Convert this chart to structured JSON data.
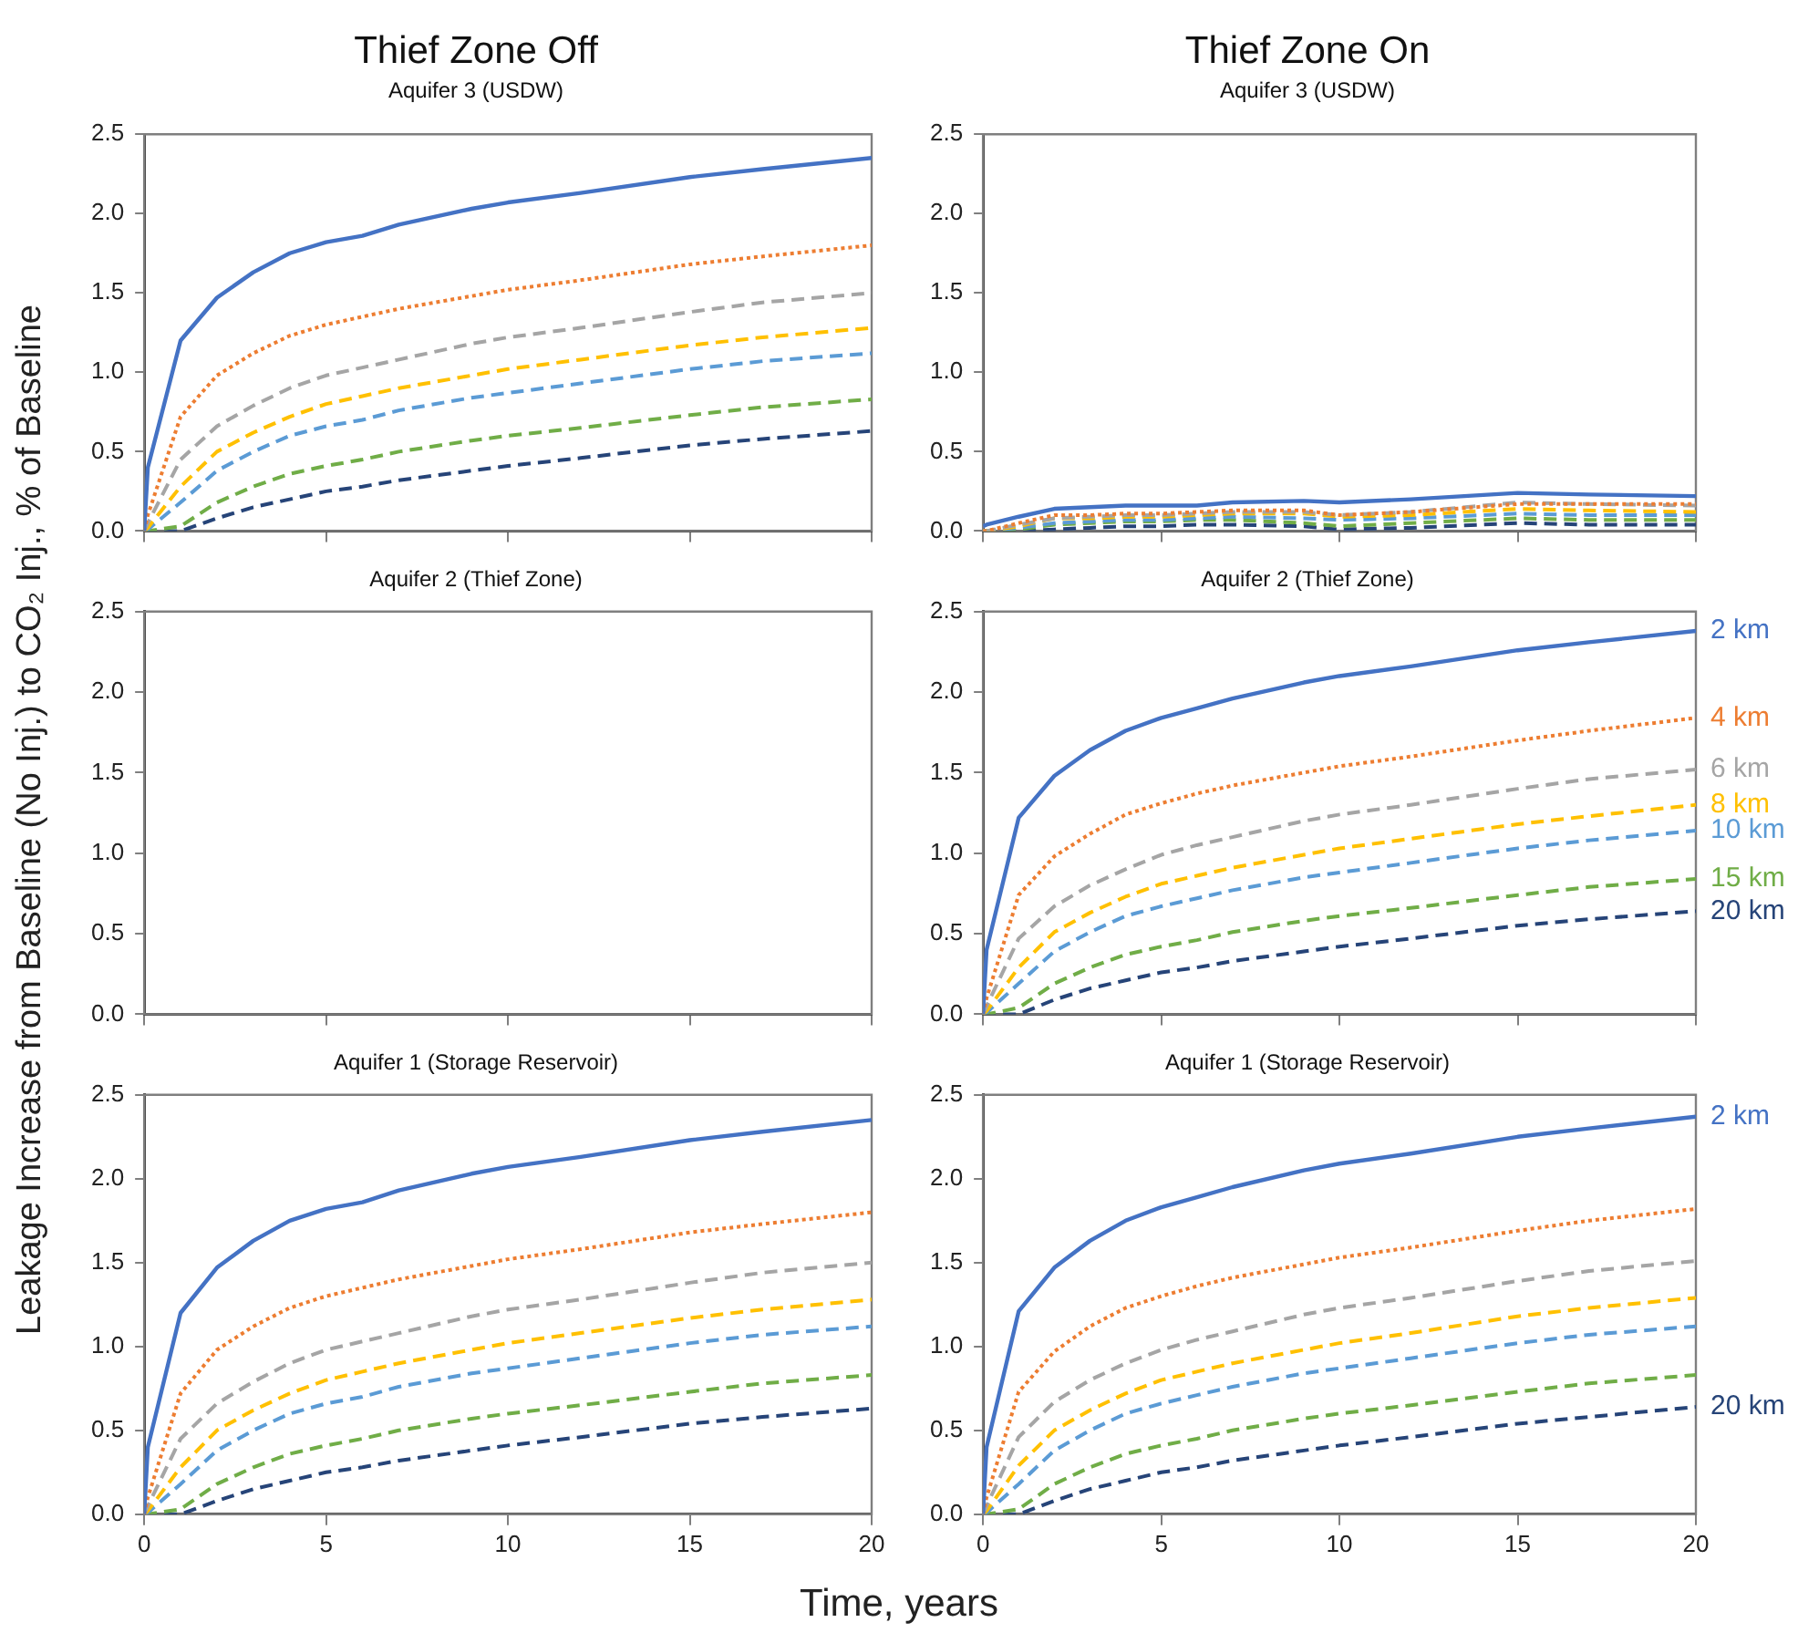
{
  "chart_data": [
    {
      "type": "line",
      "title": "Thief Zone Off",
      "subtitle": "Aquifer 3 (USDW)",
      "x": [
        0,
        0.1,
        1,
        2,
        3,
        4,
        5,
        6,
        7,
        9,
        10,
        12,
        15,
        17,
        20
      ],
      "xlim": [
        0,
        20
      ],
      "xticks": [
        0,
        5,
        10,
        15,
        20
      ],
      "ylim": [
        0,
        2.5
      ],
      "yticks": [
        {
          "value": 0,
          "label": "0.0"
        },
        {
          "value": 0.5,
          "label": "0.5"
        },
        {
          "value": 1,
          "label": "1.0"
        },
        {
          "value": 1.5,
          "label": "1.5"
        },
        {
          "value": 2,
          "label": "2.0"
        },
        {
          "value": 2.5,
          "label": "2.5"
        }
      ],
      "grid": false,
      "tick_labels": "y",
      "series": [
        {
          "color": "#4472c4",
          "line_style": "solid",
          "values": [
            0,
            0.4,
            1.2,
            1.47,
            1.63,
            1.75,
            1.82,
            1.86,
            1.93,
            2.03,
            2.07,
            2.13,
            2.23,
            2.28,
            2.35
          ]
        },
        {
          "color": "#ed7d31",
          "line_style": "dotted",
          "values": [
            0,
            0.1,
            0.72,
            0.98,
            1.12,
            1.23,
            1.3,
            1.35,
            1.4,
            1.48,
            1.52,
            1.58,
            1.68,
            1.73,
            1.8
          ]
        },
        {
          "color": "#a5a5a5",
          "line_style": "dashed",
          "values": [
            0,
            0.05,
            0.45,
            0.66,
            0.79,
            0.9,
            0.98,
            1.03,
            1.08,
            1.18,
            1.22,
            1.28,
            1.38,
            1.44,
            1.5
          ]
        },
        {
          "color": "#ffc000",
          "line_style": "dashed",
          "values": [
            0,
            0.02,
            0.28,
            0.5,
            0.62,
            0.72,
            0.8,
            0.85,
            0.9,
            0.98,
            1.02,
            1.08,
            1.17,
            1.22,
            1.28
          ]
        },
        {
          "color": "#5b9bd5",
          "line_style": "dashed",
          "values": [
            0,
            0.01,
            0.18,
            0.38,
            0.5,
            0.6,
            0.66,
            0.7,
            0.76,
            0.84,
            0.87,
            0.93,
            1.02,
            1.07,
            1.12
          ]
        },
        {
          "color": "#70ad47",
          "line_style": "dashed",
          "values": [
            0,
            0,
            0.03,
            0.18,
            0.28,
            0.36,
            0.41,
            0.45,
            0.5,
            0.57,
            0.6,
            0.65,
            0.73,
            0.78,
            0.83
          ]
        },
        {
          "color": "#264478",
          "line_style": "dashed",
          "values": [
            0,
            0,
            0,
            0.08,
            0.15,
            0.2,
            0.25,
            0.28,
            0.32,
            0.38,
            0.41,
            0.46,
            0.54,
            0.58,
            0.63
          ]
        }
      ]
    },
    {
      "type": "line",
      "title": "Thief Zone On",
      "subtitle": "Aquifer 3 (USDW)",
      "x": [
        0,
        0.1,
        1,
        2,
        3,
        4,
        5,
        6,
        7,
        9,
        10,
        12,
        15,
        17,
        20
      ],
      "xlim": [
        0,
        20
      ],
      "xticks": [
        0,
        5,
        10,
        15,
        20
      ],
      "ylim": [
        0,
        2.5
      ],
      "yticks": [
        {
          "value": 0,
          "label": "0.0"
        },
        {
          "value": 0.5,
          "label": "0.5"
        },
        {
          "value": 1,
          "label": "1.0"
        },
        {
          "value": 1.5,
          "label": "1.5"
        },
        {
          "value": 2,
          "label": "2.0"
        },
        {
          "value": 2.5,
          "label": "2.5"
        }
      ],
      "grid": false,
      "tick_labels": "y",
      "series": [
        {
          "color": "#4472c4",
          "line_style": "solid",
          "values": [
            0.03,
            0.04,
            0.09,
            0.14,
            0.15,
            0.16,
            0.16,
            0.16,
            0.18,
            0.19,
            0.18,
            0.2,
            0.24,
            0.23,
            0.22
          ]
        },
        {
          "color": "#ed7d31",
          "line_style": "dotted",
          "values": [
            0,
            0,
            0.05,
            0.1,
            0.1,
            0.11,
            0.11,
            0.12,
            0.13,
            0.13,
            0.1,
            0.12,
            0.17,
            0.17,
            0.17
          ]
        },
        {
          "color": "#a5a5a5",
          "line_style": "dashed",
          "values": [
            0,
            0,
            0.04,
            0.08,
            0.09,
            0.1,
            0.1,
            0.11,
            0.12,
            0.12,
            0.1,
            0.12,
            0.18,
            0.17,
            0.16
          ]
        },
        {
          "color": "#ffc000",
          "line_style": "dashed",
          "values": [
            0,
            0,
            0.03,
            0.08,
            0.08,
            0.09,
            0.09,
            0.1,
            0.11,
            0.11,
            0.09,
            0.1,
            0.14,
            0.13,
            0.12
          ]
        },
        {
          "color": "#5b9bd5",
          "line_style": "dashed",
          "values": [
            0,
            0,
            0.02,
            0.05,
            0.06,
            0.07,
            0.07,
            0.08,
            0.09,
            0.08,
            0.07,
            0.08,
            0.11,
            0.1,
            0.1
          ]
        },
        {
          "color": "#70ad47",
          "line_style": "dashed",
          "values": [
            0,
            0,
            0.01,
            0.04,
            0.05,
            0.06,
            0.06,
            0.07,
            0.07,
            0.05,
            0.03,
            0.05,
            0.08,
            0.07,
            0.07
          ]
        },
        {
          "color": "#264478",
          "line_style": "dashed",
          "values": [
            0,
            0,
            0,
            0.01,
            0.02,
            0.03,
            0.03,
            0.04,
            0.04,
            0.03,
            0.01,
            0.02,
            0.05,
            0.04,
            0.04
          ]
        }
      ]
    },
    {
      "type": "line",
      "title": "Aquifer 2 (Thief Zone)",
      "ylabel": "Leakage Increase from Baseline (No Inj.) to CO₂ Inj., % of Baseline",
      "xlim": [
        0,
        20
      ],
      "xticks": [
        0,
        5,
        10,
        15,
        20
      ],
      "ylim": [
        0,
        2.5
      ],
      "yticks": [
        {
          "value": 0,
          "label": "0.0"
        },
        {
          "value": 0.5,
          "label": "0.5"
        },
        {
          "value": 1,
          "label": "1.0"
        },
        {
          "value": 1.5,
          "label": "1.5"
        },
        {
          "value": 2,
          "label": "2.0"
        },
        {
          "value": 2.5,
          "label": "2.5"
        }
      ],
      "grid": false,
      "tick_labels": "y"
    },
    {
      "type": "line",
      "title": "Aquifer 2 (Thief Zone)",
      "x": [
        0,
        0.1,
        1,
        2,
        3,
        4,
        5,
        6,
        7,
        9,
        10,
        12,
        15,
        17,
        20
      ],
      "xlim": [
        0,
        20
      ],
      "xticks": [
        0,
        5,
        10,
        15,
        20
      ],
      "ylim": [
        0,
        2.5
      ],
      "yticks": [
        {
          "value": 0,
          "label": "0.0"
        },
        {
          "value": 0.5,
          "label": "0.5"
        },
        {
          "value": 1,
          "label": "1.0"
        },
        {
          "value": 1.5,
          "label": "1.5"
        },
        {
          "value": 2,
          "label": "2.0"
        },
        {
          "value": 2.5,
          "label": "2.5"
        }
      ],
      "grid": false,
      "tick_labels": "y",
      "series": [
        {
          "name": "2 km",
          "color": "#4472c4",
          "line_style": "solid",
          "values": [
            0,
            0.4,
            1.22,
            1.48,
            1.64,
            1.76,
            1.84,
            1.9,
            1.96,
            2.06,
            2.1,
            2.16,
            2.26,
            2.31,
            2.38
          ]
        },
        {
          "name": "4 km",
          "color": "#ed7d31",
          "line_style": "dotted",
          "values": [
            0,
            0.1,
            0.74,
            0.98,
            1.12,
            1.24,
            1.31,
            1.37,
            1.42,
            1.5,
            1.54,
            1.6,
            1.7,
            1.76,
            1.84
          ]
        },
        {
          "name": "6 km",
          "color": "#a5a5a5",
          "line_style": "dashed",
          "values": [
            0,
            0.05,
            0.47,
            0.67,
            0.8,
            0.9,
            0.99,
            1.05,
            1.1,
            1.2,
            1.24,
            1.3,
            1.4,
            1.46,
            1.52
          ]
        },
        {
          "name": "8 km",
          "color": "#ffc000",
          "line_style": "dashed",
          "values": [
            0,
            0.02,
            0.29,
            0.51,
            0.63,
            0.73,
            0.81,
            0.86,
            0.91,
            0.99,
            1.03,
            1.09,
            1.18,
            1.23,
            1.3
          ]
        },
        {
          "name": "10 km",
          "color": "#5b9bd5",
          "line_style": "dashed",
          "values": [
            0,
            0.01,
            0.19,
            0.39,
            0.51,
            0.61,
            0.67,
            0.72,
            0.77,
            0.85,
            0.88,
            0.94,
            1.03,
            1.08,
            1.14
          ]
        },
        {
          "name": "15 km",
          "color": "#70ad47",
          "line_style": "dashed",
          "values": [
            0,
            0,
            0.04,
            0.19,
            0.29,
            0.37,
            0.42,
            0.46,
            0.51,
            0.58,
            0.61,
            0.66,
            0.74,
            0.79,
            0.84
          ]
        },
        {
          "name": "20 km",
          "color": "#264478",
          "line_style": "dashed",
          "values": [
            0,
            0,
            0,
            0.09,
            0.16,
            0.21,
            0.26,
            0.29,
            0.33,
            0.39,
            0.42,
            0.47,
            0.55,
            0.59,
            0.64
          ]
        }
      ]
    },
    {
      "type": "line",
      "title": "Aquifer 1 (Storage Reservoir)",
      "xlabel": "Time, years",
      "x": [
        0,
        0.1,
        1,
        2,
        3,
        4,
        5,
        6,
        7,
        9,
        10,
        12,
        15,
        17,
        20
      ],
      "xlim": [
        0,
        20
      ],
      "xticks": [
        0,
        5,
        10,
        15,
        20
      ],
      "ylim": [
        0,
        2.5
      ],
      "yticks": [
        {
          "value": 0,
          "label": "0.0"
        },
        {
          "value": 0.5,
          "label": "0.5"
        },
        {
          "value": 1,
          "label": "1.0"
        },
        {
          "value": 1.5,
          "label": "1.5"
        },
        {
          "value": 2,
          "label": "2.0"
        },
        {
          "value": 2.5,
          "label": "2.5"
        }
      ],
      "grid": false,
      "series": [
        {
          "color": "#4472c4",
          "line_style": "solid",
          "values": [
            0,
            0.4,
            1.2,
            1.47,
            1.63,
            1.75,
            1.82,
            1.86,
            1.93,
            2.03,
            2.07,
            2.13,
            2.23,
            2.28,
            2.35
          ]
        },
        {
          "color": "#ed7d31",
          "line_style": "dotted",
          "values": [
            0,
            0.1,
            0.72,
            0.98,
            1.12,
            1.23,
            1.3,
            1.35,
            1.4,
            1.48,
            1.52,
            1.58,
            1.68,
            1.73,
            1.8
          ]
        },
        {
          "color": "#a5a5a5",
          "line_style": "dashed",
          "values": [
            0,
            0.05,
            0.45,
            0.66,
            0.79,
            0.9,
            0.98,
            1.03,
            1.08,
            1.18,
            1.22,
            1.28,
            1.38,
            1.44,
            1.5
          ]
        },
        {
          "color": "#ffc000",
          "line_style": "dashed",
          "values": [
            0,
            0.02,
            0.28,
            0.5,
            0.62,
            0.72,
            0.8,
            0.85,
            0.9,
            0.98,
            1.02,
            1.08,
            1.17,
            1.22,
            1.28
          ]
        },
        {
          "color": "#5b9bd5",
          "line_style": "dashed",
          "values": [
            0,
            0.01,
            0.18,
            0.38,
            0.5,
            0.6,
            0.66,
            0.7,
            0.76,
            0.84,
            0.87,
            0.93,
            1.02,
            1.07,
            1.12
          ]
        },
        {
          "color": "#70ad47",
          "line_style": "dashed",
          "values": [
            0,
            0,
            0.03,
            0.18,
            0.28,
            0.36,
            0.41,
            0.45,
            0.5,
            0.57,
            0.6,
            0.65,
            0.73,
            0.78,
            0.83
          ]
        },
        {
          "color": "#264478",
          "line_style": "dashed",
          "values": [
            0,
            0,
            0,
            0.08,
            0.15,
            0.2,
            0.25,
            0.28,
            0.32,
            0.38,
            0.41,
            0.46,
            0.54,
            0.58,
            0.63
          ]
        }
      ]
    },
    {
      "type": "line",
      "title": "Aquifer 1 (Storage Reservoir)",
      "x": [
        0,
        0.1,
        1,
        2,
        3,
        4,
        5,
        6,
        7,
        9,
        10,
        12,
        15,
        17,
        20
      ],
      "xlim": [
        0,
        20
      ],
      "xticks": [
        0,
        5,
        10,
        15,
        20
      ],
      "ylim": [
        0,
        2.5
      ],
      "yticks": [
        {
          "value": 0,
          "label": "0.0"
        },
        {
          "value": 0.5,
          "label": "0.5"
        },
        {
          "value": 1,
          "label": "1.0"
        },
        {
          "value": 1.5,
          "label": "1.5"
        },
        {
          "value": 2,
          "label": "2.0"
        },
        {
          "value": 2.5,
          "label": "2.5"
        }
      ],
      "grid": false,
      "series": [
        {
          "name": "2 km",
          "color": "#4472c4",
          "line_style": "solid",
          "values": [
            0,
            0.4,
            1.21,
            1.47,
            1.63,
            1.75,
            1.83,
            1.89,
            1.95,
            2.05,
            2.09,
            2.15,
            2.25,
            2.3,
            2.37
          ]
        },
        {
          "color": "#ed7d31",
          "line_style": "dotted",
          "values": [
            0,
            0.1,
            0.73,
            0.97,
            1.12,
            1.23,
            1.3,
            1.36,
            1.41,
            1.49,
            1.53,
            1.59,
            1.69,
            1.75,
            1.82
          ]
        },
        {
          "color": "#a5a5a5",
          "line_style": "dashed",
          "values": [
            0,
            0.05,
            0.46,
            0.67,
            0.8,
            0.9,
            0.98,
            1.04,
            1.09,
            1.19,
            1.23,
            1.29,
            1.39,
            1.45,
            1.51
          ]
        },
        {
          "color": "#ffc000",
          "line_style": "dashed",
          "values": [
            0,
            0.02,
            0.29,
            0.5,
            0.62,
            0.72,
            0.8,
            0.85,
            0.9,
            0.98,
            1.02,
            1.08,
            1.18,
            1.23,
            1.29
          ]
        },
        {
          "color": "#5b9bd5",
          "line_style": "dashed",
          "values": [
            0,
            0.01,
            0.18,
            0.38,
            0.5,
            0.6,
            0.66,
            0.71,
            0.76,
            0.84,
            0.87,
            0.93,
            1.02,
            1.07,
            1.12
          ]
        },
        {
          "color": "#70ad47",
          "line_style": "dashed",
          "values": [
            0,
            0,
            0.03,
            0.18,
            0.28,
            0.36,
            0.41,
            0.45,
            0.5,
            0.57,
            0.6,
            0.65,
            0.73,
            0.78,
            0.83
          ]
        },
        {
          "name": "20 km",
          "color": "#264478",
          "line_style": "dashed",
          "values": [
            0,
            0,
            0,
            0.08,
            0.15,
            0.2,
            0.25,
            0.28,
            0.32,
            0.38,
            0.41,
            0.46,
            0.54,
            0.58,
            0.64
          ]
        }
      ]
    }
  ]
}
